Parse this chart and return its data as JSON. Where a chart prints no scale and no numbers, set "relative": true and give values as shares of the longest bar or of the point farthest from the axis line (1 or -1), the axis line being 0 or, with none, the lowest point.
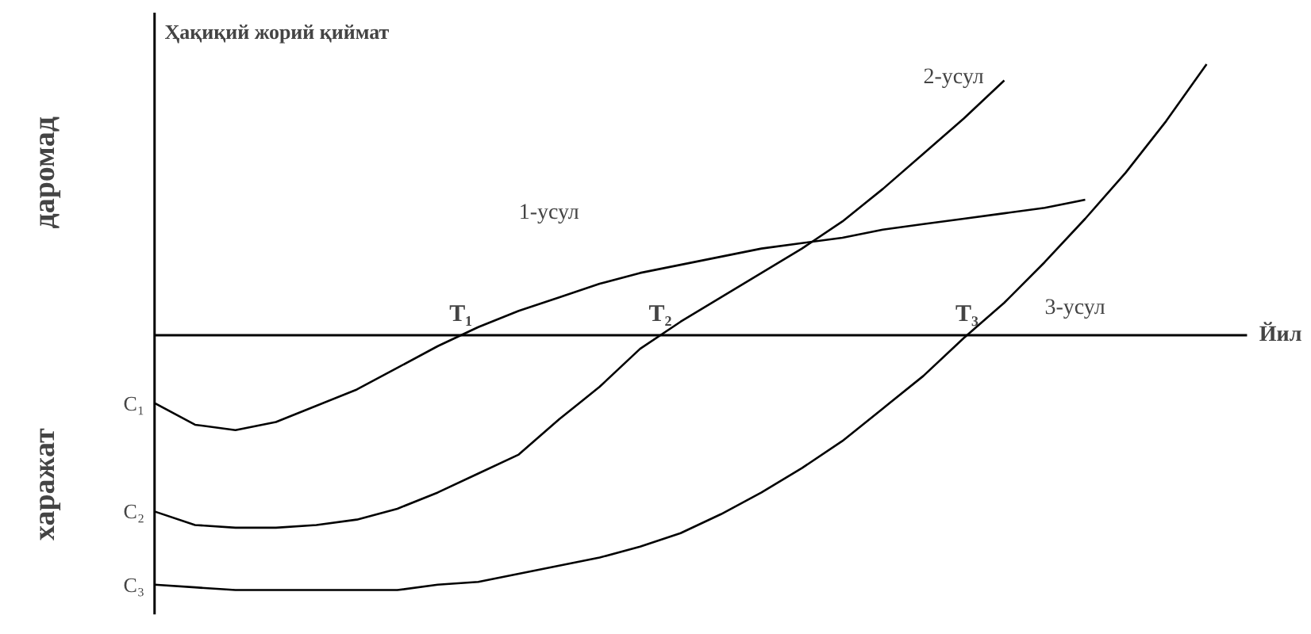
{
  "chart_data": {
    "type": "line",
    "relative": true,
    "xlabel": "Йил",
    "ylabel": "Ҳақиқий жорий қиймат",
    "categories": [
      null,
      null,
      null,
      null,
      null,
      null,
      null,
      null,
      null,
      null,
      null,
      null,
      null,
      null,
      null,
      null,
      null,
      null,
      null,
      null,
      null,
      null,
      null,
      null,
      null,
      null,
      null
    ],
    "series": [
      {
        "name": "1-усул",
        "color": "#000000",
        "values": [
          -0.25,
          -0.33,
          -0.35,
          -0.32,
          -0.26,
          -0.2,
          -0.12,
          -0.04,
          0.03,
          0.09,
          0.14,
          0.19,
          0.23,
          0.26,
          0.29,
          0.32,
          0.34,
          0.36,
          0.39,
          0.41,
          0.43,
          0.45,
          0.47,
          0.5,
          null,
          null,
          null
        ]
      },
      {
        "name": "2-усул",
        "color": "#000000",
        "values": [
          -0.65,
          -0.7,
          -0.71,
          -0.71,
          -0.7,
          -0.68,
          -0.64,
          -0.58,
          -0.51,
          -0.44,
          -0.31,
          -0.19,
          -0.05,
          0.05,
          0.14,
          0.23,
          0.32,
          0.42,
          0.54,
          0.67,
          0.8,
          0.94,
          null,
          null,
          null,
          null,
          null
        ]
      },
      {
        "name": "3-усул",
        "color": "#000000",
        "values": [
          -0.92,
          -0.93,
          -0.94,
          -0.94,
          -0.94,
          -0.94,
          -0.94,
          -0.92,
          -0.91,
          -0.88,
          -0.85,
          -0.82,
          -0.78,
          -0.73,
          -0.66,
          -0.58,
          -0.49,
          -0.39,
          -0.27,
          -0.15,
          -0.01,
          0.12,
          0.27,
          0.43,
          0.6,
          0.79,
          1.0
        ]
      }
    ],
    "annotations": [
      "T₁",
      "T₂",
      "T₃",
      "C₁",
      "C₂",
      "C₃",
      "даромад",
      "харажат"
    ],
    "grid": false,
    "legend": false,
    "marker": "none",
    "line_style": "solid"
  }
}
